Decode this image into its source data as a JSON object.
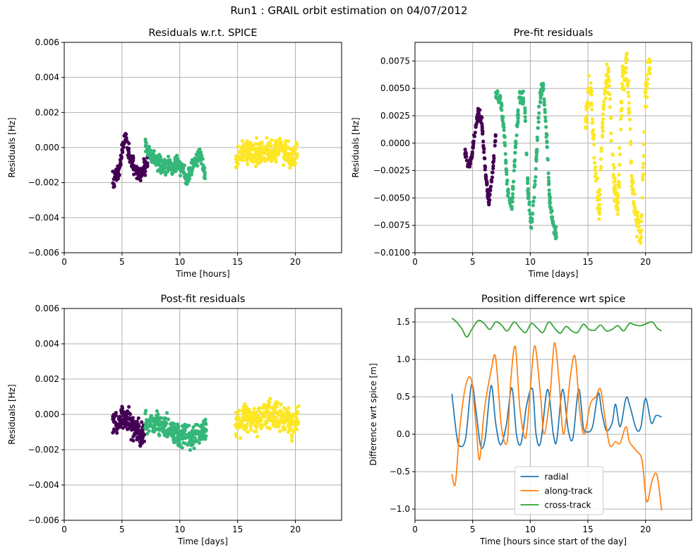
{
  "figure": {
    "title": "Run1 : GRAIL orbit estimation on 04/07/2012"
  },
  "colors": {
    "c0": "#440154",
    "c1": "#35b779",
    "c2": "#fde725",
    "radial": "#1f77b4",
    "along": "#ff7f0e",
    "cross": "#2ca02c",
    "grid": "#b0b0b0"
  },
  "chart_data": [
    {
      "id": "residuals-spice",
      "type": "scatter",
      "title": "Residuals w.r.t. SPICE",
      "xlabel": "Time [hours]",
      "ylabel": "Residuals [Hz]",
      "xlim": [
        0,
        24
      ],
      "ylim": [
        -0.006,
        0.006
      ],
      "xticks": [
        0,
        5,
        10,
        15,
        20
      ],
      "xtick_labels": [
        "0",
        "5",
        "10",
        "15",
        "20"
      ],
      "yticks": [
        -0.006,
        -0.004,
        -0.002,
        0.0,
        0.002,
        0.004,
        0.006
      ],
      "ytick_labels": [
        "−0.006",
        "−0.004",
        "−0.002",
        "0.000",
        "0.002",
        "0.004",
        "0.006"
      ],
      "grid": true,
      "series": [
        {
          "color_key": "c0",
          "segments": [
            {
              "x": [
                4.2,
                4.5,
                4.8,
                5.0,
                5.2,
                5.4,
                5.7,
                6.0,
                6.3,
                6.6,
                6.9,
                7.2
              ],
              "y": [
                -0.0018,
                -0.0016,
                -0.0012,
                -0.0003,
                0.0004,
                0.0002,
                -0.0005,
                -0.001,
                -0.0013,
                -0.0015,
                -0.0012,
                -0.001
              ],
              "spread": 0.00045
            }
          ]
        },
        {
          "color_key": "c1",
          "segments": [
            {
              "x": [
                7.0,
                7.4,
                7.8,
                8.2,
                8.6,
                9.0,
                9.4,
                9.8,
                10.2,
                10.6,
                11.0,
                11.4,
                11.8,
                12.2
              ],
              "y": [
                0.0002,
                -0.0004,
                -0.0006,
                -0.0008,
                -0.0011,
                -0.0009,
                -0.0012,
                -0.0008,
                -0.0013,
                -0.0018,
                -0.0012,
                -0.0006,
                -0.0004,
                -0.0015
              ],
              "spread": 0.0004
            }
          ]
        },
        {
          "color_key": "c2",
          "segments": [
            {
              "x": [
                14.8,
                15.4,
                16.0,
                16.6,
                17.2,
                17.8,
                18.4,
                19.0,
                19.6,
                20.2
              ],
              "y": [
                -0.0006,
                -0.0003,
                -0.0002,
                -0.0003,
                -0.0001,
                -0.0003,
                0.0,
                -0.0002,
                -0.0006,
                -0.0003
              ],
              "spread": 0.0006
            }
          ]
        }
      ]
    },
    {
      "id": "prefit",
      "type": "scatter",
      "title": "Pre-fit residuals",
      "xlabel": "Time [days]",
      "ylabel": "Residuals [Hz]",
      "xlim": [
        0,
        24
      ],
      "ylim": [
        -0.01,
        0.0092
      ],
      "xticks": [
        0,
        5,
        10,
        15,
        20
      ],
      "xtick_labels": [
        "0",
        "5",
        "10",
        "15",
        "20"
      ],
      "yticks": [
        -0.01,
        -0.0075,
        -0.005,
        -0.0025,
        0.0,
        0.0025,
        0.005,
        0.0075
      ],
      "ytick_labels": [
        "−0.0100",
        "−0.0075",
        "−0.0050",
        "−0.0025",
        "0.0000",
        "0.0025",
        "0.0050",
        "0.0075"
      ],
      "grid": true,
      "series": [
        {
          "color_key": "c0",
          "segments": [
            {
              "x": [
                4.3,
                4.6,
                4.9,
                5.2,
                5.5,
                5.8,
                6.1,
                6.4,
                6.7,
                7.0
              ],
              "y": [
                -0.0005,
                -0.002,
                -0.0015,
                0.001,
                0.0028,
                0.002,
                -0.0025,
                -0.0055,
                -0.003,
                0.0005
              ],
              "spread": 0.0004
            }
          ]
        },
        {
          "color_key": "c1",
          "segments": [
            {
              "x": [
                7.0,
                7.4,
                7.7,
                8.0,
                8.4,
                8.8,
                9.1,
                9.5,
                9.8,
                10.1,
                10.4,
                10.8,
                11.1,
                11.4,
                11.7,
                12.0,
                12.3
              ],
              "y": [
                0.0045,
                0.004,
                0.0015,
                -0.004,
                -0.006,
                0.001,
                0.0045,
                0.004,
                -0.0045,
                -0.0075,
                -0.004,
                0.004,
                0.0055,
                0.001,
                -0.0055,
                -0.0075,
                -0.0082
              ],
              "spread": 0.0005
            }
          ]
        },
        {
          "color_key": "c2",
          "segments": [
            {
              "x": [
                14.8,
                15.2,
                15.6,
                16.0,
                16.4,
                16.8,
                17.2,
                17.6,
                18.0,
                18.4,
                18.8,
                19.2,
                19.6,
                20.0,
                20.4
              ],
              "y": [
                0.002,
                0.006,
                -0.002,
                -0.006,
                0.0045,
                0.0065,
                -0.003,
                -0.006,
                0.006,
                0.0075,
                -0.003,
                -0.007,
                -0.0085,
                0.0045,
                0.0075
              ],
              "spread": 0.0012
            }
          ]
        }
      ]
    },
    {
      "id": "postfit",
      "type": "scatter",
      "title": "Post-fit residuals",
      "xlabel": "Time [days]",
      "ylabel": "Residuals [Hz]",
      "xlim": [
        0,
        24
      ],
      "ylim": [
        -0.006,
        0.006
      ],
      "xticks": [
        0,
        5,
        10,
        15,
        20
      ],
      "xtick_labels": [
        "0",
        "5",
        "10",
        "15",
        "20"
      ],
      "yticks": [
        -0.006,
        -0.004,
        -0.002,
        0.0,
        0.002,
        0.004,
        0.006
      ],
      "ytick_labels": [
        "−0.006",
        "−0.004",
        "−0.002",
        "0.000",
        "0.002",
        "0.004",
        "0.006"
      ],
      "grid": true,
      "series": [
        {
          "color_key": "c0",
          "segments": [
            {
              "x": [
                4.2,
                4.6,
                5.0,
                5.4,
                5.8,
                6.2,
                6.6,
                7.0
              ],
              "y": [
                -0.0004,
                -0.0005,
                -0.0002,
                -0.0003,
                -0.0006,
                -0.0008,
                -0.0012,
                -0.0008
              ],
              "spread": 0.0006
            }
          ]
        },
        {
          "color_key": "c1",
          "segments": [
            {
              "x": [
                7.0,
                7.6,
                8.2,
                8.8,
                9.4,
                10.0,
                10.6,
                11.2,
                11.8,
                12.3
              ],
              "y": [
                -0.0004,
                -0.0007,
                -0.0005,
                -0.0007,
                -0.001,
                -0.0012,
                -0.0011,
                -0.0013,
                -0.001,
                -0.0008
              ],
              "spread": 0.0006
            }
          ]
        },
        {
          "color_key": "c2",
          "segments": [
            {
              "x": [
                14.8,
                15.4,
                16.0,
                16.6,
                17.2,
                17.8,
                18.4,
                19.0,
                19.6,
                20.3
              ],
              "y": [
                -0.0004,
                -0.0002,
                -0.0002,
                -0.0003,
                -0.0001,
                0.0,
                -0.0002,
                -0.0002,
                -0.0005,
                -0.0003
              ],
              "spread": 0.0007
            }
          ]
        }
      ]
    },
    {
      "id": "position-diff",
      "type": "line",
      "title": "Position difference wrt spice",
      "xlabel": "Time [hours since start of the day]",
      "ylabel": "Difference wrt spice [m]",
      "xlim": [
        0,
        24
      ],
      "ylim": [
        -1.15,
        1.68
      ],
      "xticks": [
        0,
        5,
        10,
        15,
        20
      ],
      "xtick_labels": [
        "0",
        "5",
        "10",
        "15",
        "20"
      ],
      "yticks": [
        -1.0,
        -0.5,
        0.0,
        0.5,
        1.0,
        1.5
      ],
      "ytick_labels": [
        "−1.0",
        "−0.5",
        "0.0",
        "0.5",
        "1.0",
        "1.5"
      ],
      "grid": true,
      "legend": {
        "placement": "lower-center"
      },
      "series": [
        {
          "name": "radial",
          "color_key": "radial",
          "x": [
            3.2,
            3.6,
            3.9,
            4.4,
            4.9,
            5.3,
            5.7,
            6.1,
            6.6,
            7.0,
            7.4,
            7.9,
            8.4,
            8.8,
            9.2,
            9.7,
            10.2,
            10.5,
            10.9,
            11.5,
            12.0,
            12.3,
            12.8,
            13.3,
            13.7,
            14.2,
            14.6,
            14.9,
            15.4,
            15.9,
            16.2,
            16.6,
            17.1,
            17.4,
            17.8,
            18.3,
            18.6,
            19.2,
            19.6,
            20.0,
            20.5,
            20.9,
            21.4
          ],
          "y": [
            0.54,
            0.0,
            -0.16,
            -0.05,
            0.66,
            0.3,
            -0.16,
            -0.05,
            0.65,
            0.15,
            -0.14,
            0.1,
            0.62,
            0.0,
            -0.12,
            0.4,
            0.6,
            0.0,
            -0.11,
            0.6,
            0.0,
            -0.08,
            0.6,
            0.05,
            -0.05,
            0.6,
            0.1,
            0.03,
            0.1,
            0.55,
            0.3,
            0.05,
            0.15,
            0.4,
            0.1,
            0.48,
            0.4,
            0.07,
            0.1,
            0.48,
            0.15,
            0.25,
            0.23
          ]
        },
        {
          "name": "along-track",
          "color_key": "along",
          "x": [
            3.2,
            3.5,
            3.9,
            4.4,
            4.9,
            5.3,
            5.6,
            6.0,
            6.6,
            7.0,
            7.5,
            8.0,
            8.3,
            8.7,
            9.1,
            9.6,
            10.0,
            10.4,
            10.9,
            11.2,
            11.7,
            12.1,
            12.5,
            12.9,
            13.5,
            13.9,
            14.3,
            14.7,
            15.2,
            15.7,
            16.1,
            16.5,
            16.9,
            17.4,
            17.8,
            18.3,
            18.6,
            19.2,
            19.7,
            20.1,
            20.6,
            21.0,
            21.4
          ],
          "y": [
            -0.53,
            -0.66,
            0.1,
            0.65,
            0.72,
            0.1,
            -0.34,
            0.3,
            0.85,
            1.02,
            0.1,
            -0.1,
            0.7,
            1.17,
            0.35,
            -0.05,
            0.6,
            1.18,
            0.5,
            0.0,
            0.5,
            1.22,
            0.7,
            0.0,
            0.8,
            1.03,
            0.3,
            0.0,
            0.4,
            0.5,
            0.6,
            0.2,
            -0.15,
            -0.1,
            -0.12,
            0.1,
            -0.1,
            -0.22,
            -0.35,
            -0.9,
            -0.6,
            -0.55,
            -1.02
          ]
        },
        {
          "name": "cross-track",
          "color_key": "cross",
          "x": [
            3.2,
            3.6,
            4.1,
            4.5,
            5.0,
            5.5,
            6.0,
            6.5,
            7.0,
            7.5,
            8.0,
            8.6,
            9.1,
            9.6,
            10.1,
            10.6,
            11.1,
            11.6,
            12.1,
            12.6,
            13.1,
            13.6,
            14.1,
            14.6,
            15.1,
            15.6,
            16.1,
            16.6,
            17.1,
            17.6,
            18.1,
            18.6,
            19.1,
            19.6,
            20.1,
            20.6,
            21.0,
            21.4
          ],
          "y": [
            1.55,
            1.5,
            1.4,
            1.3,
            1.42,
            1.52,
            1.48,
            1.4,
            1.5,
            1.46,
            1.38,
            1.5,
            1.42,
            1.36,
            1.48,
            1.42,
            1.36,
            1.5,
            1.42,
            1.35,
            1.44,
            1.38,
            1.36,
            1.47,
            1.4,
            1.39,
            1.46,
            1.38,
            1.4,
            1.45,
            1.38,
            1.48,
            1.46,
            1.45,
            1.48,
            1.5,
            1.42,
            1.38
          ]
        }
      ]
    }
  ]
}
